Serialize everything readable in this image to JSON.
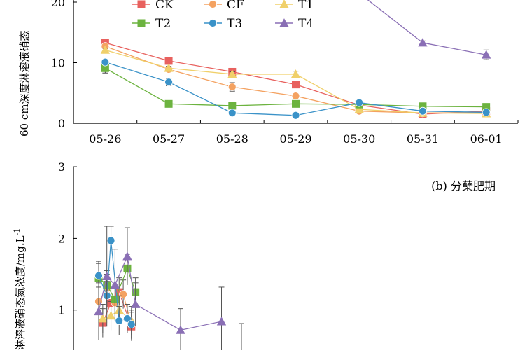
{
  "chart_data": [
    {
      "type": "line",
      "categories": [
        "05-26",
        "05-27",
        "05-28",
        "05-29",
        "05-30",
        "05-31",
        "06-01"
      ],
      "ylabel": "60 cm深度淋溶液硝态",
      "ylim": [
        0,
        20
      ],
      "yticks": [
        "0",
        "10",
        "20"
      ],
      "legend_position": "top-center",
      "series": [
        {
          "name": "CK",
          "color": "#e8615e",
          "marker": "square",
          "values": [
            13.3,
            10.3,
            8.5,
            6.4,
            3.0,
            1.5,
            2.0
          ],
          "errors": [
            0.4,
            0.4,
            0.5,
            0.5,
            0.3,
            0.2,
            0.2
          ]
        },
        {
          "name": "CF",
          "color": "#f4a261",
          "marker": "circle",
          "values": [
            12.7,
            8.9,
            6.0,
            4.5,
            2.0,
            1.7,
            1.8
          ],
          "errors": [
            0.3,
            0.3,
            0.7,
            0.4,
            0.3,
            0.2,
            0.2
          ]
        },
        {
          "name": "T1",
          "color": "#f0d06a",
          "marker": "triangle",
          "values": [
            12.1,
            9.1,
            8.1,
            8.1,
            2.3,
            1.7,
            1.6
          ],
          "errors": [
            0.3,
            0.3,
            0.4,
            0.5,
            0.3,
            0.2,
            0.2
          ]
        },
        {
          "name": "T2",
          "color": "#6cb33f",
          "marker": "square",
          "values": [
            9.1,
            3.2,
            2.9,
            3.2,
            3.1,
            2.8,
            2.7
          ],
          "errors": [
            0.8,
            0.3,
            0.2,
            0.2,
            0.2,
            0.2,
            0.2
          ]
        },
        {
          "name": "T3",
          "color": "#3a92c8",
          "marker": "circle",
          "values": [
            10.1,
            6.8,
            1.7,
            1.3,
            3.4,
            2.0,
            1.8
          ],
          "errors": [
            0.3,
            0.6,
            0.2,
            0.2,
            0.3,
            0.2,
            0.2
          ]
        },
        {
          "name": "T4",
          "color": "#8a6fb5",
          "marker": "triangle",
          "values": [
            null,
            null,
            null,
            null,
            null,
            13.3,
            11.3
          ],
          "errors": [
            0,
            0,
            0,
            0,
            0,
            0.3,
            0.8
          ]
        }
      ]
    },
    {
      "type": "line",
      "panel_label": "(b) 分蘖肥期",
      "ylabel": "淋溶液硝态氮浓度/mg.L",
      "ylabel_superscript": "-1",
      "ylim": [
        0,
        3
      ],
      "yticks": [
        "1",
        "2",
        "3"
      ],
      "series": [
        {
          "name": "CK",
          "color": "#e8615e",
          "marker": "square",
          "points": [
            [
              1,
              0.82
            ],
            [
              3,
              1.1
            ],
            [
              5,
              1.25
            ],
            [
              8,
              0.77
            ]
          ]
        },
        {
          "name": "CF",
          "color": "#f4a261",
          "marker": "circle",
          "points": [
            [
              0,
              1.12
            ],
            [
              2,
              1.3
            ],
            [
              4,
              1.1
            ],
            [
              6,
              1.22
            ],
            [
              8,
              0.8
            ]
          ]
        },
        {
          "name": "T1",
          "color": "#f0d06a",
          "marker": "triangle",
          "points": [
            [
              1,
              0.88
            ],
            [
              3,
              0.92
            ],
            [
              5,
              1.0
            ],
            [
              8,
              0.85
            ]
          ]
        },
        {
          "name": "T2",
          "color": "#6cb33f",
          "marker": "square",
          "points": [
            [
              0,
              1.45
            ],
            [
              2,
              1.35
            ],
            [
              4,
              1.15
            ],
            [
              7,
              1.58
            ],
            [
              9,
              1.25
            ]
          ]
        },
        {
          "name": "T3",
          "color": "#3a92c8",
          "marker": "circle",
          "points": [
            [
              0,
              1.48
            ],
            [
              2,
              1.2
            ],
            [
              3,
              1.97
            ],
            [
              5,
              0.85
            ],
            [
              7,
              0.88
            ],
            [
              8,
              0.8
            ]
          ]
        },
        {
          "name": "T4",
          "color": "#8a6fb5",
          "marker": "triangle",
          "points": [
            [
              0,
              0.98
            ],
            [
              2,
              1.47
            ],
            [
              4,
              1.35
            ],
            [
              7,
              1.75
            ],
            [
              9,
              1.08
            ],
            [
              20,
              0.72
            ],
            [
              30,
              0.84
            ]
          ],
          "errors": [
            0.4,
            0.7,
            0.5,
            0.4,
            0.3,
            0.3,
            0.48
          ]
        }
      ]
    }
  ]
}
